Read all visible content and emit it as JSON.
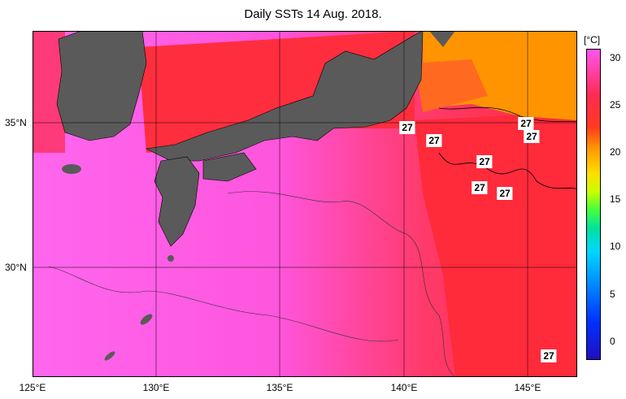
{
  "title": "Daily SSTs 14 Aug. 2018.",
  "map": {
    "lon_range": [
      125,
      147
    ],
    "lat_range": [
      26.1,
      38.1
    ],
    "lon_ticks": [
      "125°E",
      "130°E",
      "135°E",
      "140°E",
      "145°E"
    ],
    "lat_ticks": [
      "35°N",
      "30°N"
    ],
    "colors": {
      "land": "#5a5a5a",
      "warm_pink": "#ff66ee",
      "hot_red": "#ff2a3a",
      "orange": "#ff9400",
      "grid": "#000000"
    },
    "isotherm_labels": [
      "27",
      "27",
      "27",
      "27",
      "27",
      "27",
      "27",
      "27"
    ]
  },
  "colorbar": {
    "unit": "[°C]",
    "min": -2,
    "max": 31,
    "ticks": [
      "30",
      "25",
      "20",
      "15",
      "10",
      "5",
      "0"
    ]
  }
}
